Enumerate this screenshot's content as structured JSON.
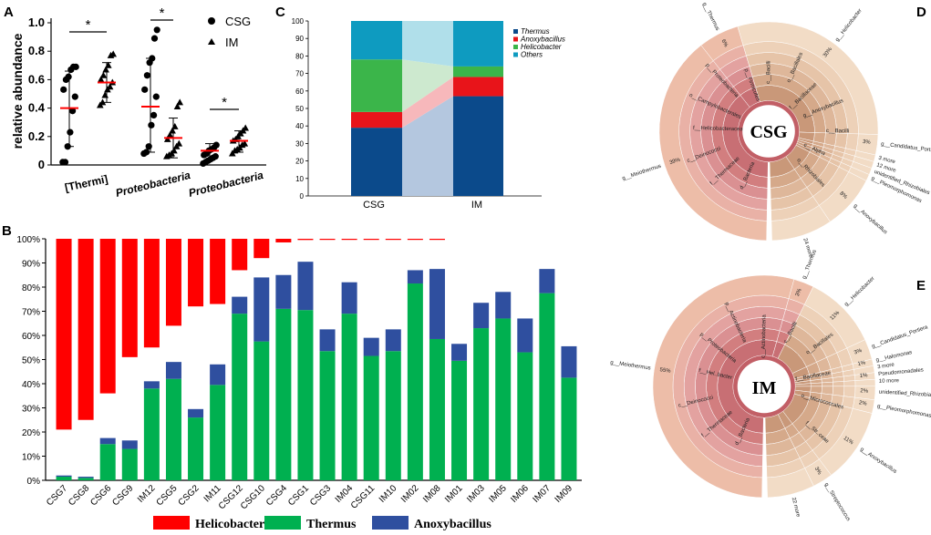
{
  "chart_data": [
    {
      "id": "A",
      "panel_label": "A",
      "type": "scatter",
      "ylabel": "relative abundance",
      "ylim": [
        0,
        1.0
      ],
      "yticks": [
        "0",
        "0.2",
        "0.4",
        "0.6",
        "0.8",
        "1.0"
      ],
      "categories": [
        "[Thermi]",
        "Proteobacteria",
        "Proteobacteria"
      ],
      "legend": [
        {
          "name": "CSG",
          "marker": "circle"
        },
        {
          "name": "IM",
          "marker": "triangle"
        }
      ],
      "significance": [
        "*",
        "*",
        "*"
      ],
      "groups": [
        {
          "csg": {
            "mean": 0.4,
            "sd_low": 0.13,
            "sd_high": 0.66,
            "points": [
              0.02,
              0.02,
              0.13,
              0.23,
              0.38,
              0.48,
              0.53,
              0.6,
              0.62,
              0.67,
              0.69,
              0.69
            ]
          },
          "im": {
            "mean": 0.58,
            "sd_low": 0.44,
            "sd_high": 0.72,
            "points": [
              0.42,
              0.44,
              0.49,
              0.53,
              0.55,
              0.58,
              0.6,
              0.63,
              0.67,
              0.7,
              0.77,
              0.78
            ]
          }
        },
        {
          "csg": {
            "mean": 0.41,
            "sd_low": 0.09,
            "sd_high": 0.75,
            "points": [
              0.08,
              0.09,
              0.13,
              0.28,
              0.35,
              0.48,
              0.53,
              0.63,
              0.72,
              0.75,
              0.89,
              0.95
            ]
          },
          "im": {
            "mean": 0.19,
            "sd_low": 0.05,
            "sd_high": 0.33,
            "points": [
              0.06,
              0.07,
              0.08,
              0.1,
              0.13,
              0.15,
              0.18,
              0.21,
              0.24,
              0.27,
              0.41,
              0.44
            ]
          }
        },
        {
          "csg": {
            "mean": 0.1,
            "sd_low": 0.04,
            "sd_high": 0.15,
            "points": [
              0.01,
              0.02,
              0.03,
              0.04,
              0.05,
              0.06,
              0.07,
              0.08,
              0.1,
              0.11,
              0.12,
              0.14
            ]
          },
          "im": {
            "mean": 0.17,
            "sd_low": 0.09,
            "sd_high": 0.24,
            "points": [
              0.08,
              0.1,
              0.11,
              0.12,
              0.14,
              0.15,
              0.17,
              0.18,
              0.2,
              0.22,
              0.24,
              0.26
            ]
          }
        }
      ]
    },
    {
      "id": "B",
      "panel_label": "B",
      "type": "bar",
      "ylim": [
        0,
        100
      ],
      "yticks": [
        "0%",
        "10%",
        "20%",
        "30%",
        "40%",
        "50%",
        "60%",
        "70%",
        "80%",
        "90%",
        "100%"
      ],
      "categories": [
        "CSG7",
        "CSG8",
        "CSG6",
        "CSG9",
        "IM12",
        "CSG5",
        "CSG2",
        "IM11",
        "CSG12",
        "CSG10",
        "CSG4",
        "CSG1",
        "CSG3",
        "IM04",
        "CSG11",
        "IM10",
        "IM02",
        "IM08",
        "IM01",
        "IM03",
        "IM05",
        "IM06",
        "IM07",
        "IM09"
      ],
      "series": [
        {
          "name": "Helicobacter",
          "color": "#FF0000",
          "values": [
            79,
            75,
            64,
            49,
            45,
            36,
            28,
            27,
            13,
            8,
            1.5,
            0.5,
            0.3,
            0.3,
            0.3,
            0.3,
            0.3,
            0.3,
            0,
            0,
            0,
            0,
            0,
            0
          ]
        },
        {
          "name": "Thermus",
          "color": "#00B050",
          "values": [
            1.5,
            1,
            15,
            13,
            38,
            42,
            26,
            39.5,
            69,
            57.5,
            71,
            70.5,
            53.5,
            69,
            51.5,
            53.5,
            81.5,
            58.5,
            49.5,
            63,
            67,
            53,
            77.5,
            42.5
          ]
        },
        {
          "name": "Anoxybacillus",
          "color": "#2F4F9F",
          "values": [
            0.5,
            0.5,
            2.5,
            3.5,
            3,
            7,
            3.5,
            8.5,
            7,
            26.5,
            14,
            20,
            9,
            13,
            7.5,
            9,
            5.5,
            29,
            7,
            10.5,
            11,
            14,
            10,
            13
          ]
        }
      ],
      "legend_placement": "bottom"
    },
    {
      "id": "C",
      "panel_label": "C",
      "type": "bar",
      "stacked": true,
      "ylim": [
        0,
        100
      ],
      "yticks": [
        "0",
        "10",
        "20",
        "30",
        "40",
        "50",
        "60",
        "70",
        "80",
        "90",
        "100"
      ],
      "categories": [
        "CSG",
        "IM"
      ],
      "series": [
        {
          "name": "Thermus",
          "color": "#0B4A8B",
          "values": [
            39,
            57
          ]
        },
        {
          "name": "Anoxybacillus",
          "color": "#E8141A",
          "values": [
            9,
            11
          ]
        },
        {
          "name": "Helicobacter",
          "color": "#3BB54A",
          "values": [
            30,
            6
          ]
        },
        {
          "name": "Others",
          "color": "#0E9BC0",
          "values": [
            22,
            26
          ]
        }
      ],
      "legend_placement": "top-right"
    },
    {
      "id": "D",
      "panel_label": "D",
      "type": "pie",
      "center_label": "CSG",
      "rings": [
        "root",
        "domain",
        "phylum",
        "class",
        "order",
        "family",
        "genus"
      ],
      "slices": [
        {
          "label": "g__Meiothermus",
          "pct_text": "39%",
          "value": 39
        },
        {
          "label": "g__Thermus",
          "pct_text": "6%",
          "value": 6
        },
        {
          "label": "g__Helicobacter",
          "pct_text": "30%",
          "value": 30
        },
        {
          "label": "g__Candidatus_Portiera",
          "pct_text": "3%",
          "value": 3
        },
        {
          "label": "3 more",
          "pct_text": "",
          "value": 1
        },
        {
          "label": "12 more",
          "pct_text": "",
          "value": 1
        },
        {
          "label": "unidentified_Rhizobiales",
          "pct_text": "",
          "value": 1
        },
        {
          "label": "g__Pleomorphomonas",
          "pct_text": "",
          "value": 1
        },
        {
          "label": "g__Anoxybacillus",
          "pct_text": "8%",
          "value": 8
        },
        {
          "label": "24 more",
          "pct_text": "",
          "value": 9
        }
      ],
      "inner_labels": [
        "d__Bacteria",
        "f__Thermaceae",
        "c__Deinococci",
        "f__Helicobacteraceae",
        "o__Campylobacterales",
        "p__Proteobacteria",
        "p__Firmicutes",
        "c__Bacilli",
        "o__Bacillales",
        "f__Bacillaceae",
        "g__Anoxybacillus",
        "c__Bacilli",
        "c__Alpha",
        "o__Rhizobiales"
      ]
    },
    {
      "id": "E",
      "panel_label": "E",
      "type": "pie",
      "center_label": "IM",
      "rings": [
        "root",
        "domain",
        "phylum",
        "class",
        "order",
        "family",
        "genus"
      ],
      "slices": [
        {
          "label": "g__Meiothermus",
          "pct_text": "55%",
          "value": 55
        },
        {
          "label": "g__Thermus",
          "pct_text": "3%",
          "value": 3
        },
        {
          "label": "g__Helicobacter",
          "pct_text": "11%",
          "value": 11
        },
        {
          "label": "g__Candidatus_Portiera",
          "pct_text": "3%",
          "value": 3
        },
        {
          "label": "g__Halomonas",
          "pct_text": "1%",
          "value": 1
        },
        {
          "label": "3 more",
          "pct_text": "",
          "value": 1
        },
        {
          "label": "Pseudomonadales",
          "pct_text": "1%",
          "value": 1
        },
        {
          "label": "10 more",
          "pct_text": "",
          "value": 1
        },
        {
          "label": "unidentified_Rhizobiales",
          "pct_text": "2%",
          "value": 2
        },
        {
          "label": "g__Pleomorphomonas",
          "pct_text": "2%",
          "value": 2
        },
        {
          "label": "g__Anoxybacillus",
          "pct_text": "11%",
          "value": 11
        },
        {
          "label": "g__Streptococcus",
          "pct_text": "3%",
          "value": 3
        },
        {
          "label": "22 more",
          "pct_text": "",
          "value": 7
        }
      ],
      "inner_labels": [
        "d__Bacteria",
        "f__Thermaceae",
        "c__Deinococci",
        "f__Hel..bacter",
        "p__Proteobacteria",
        "p__Actinobacteria",
        "c__Actinobacteria",
        "c__Bacilli",
        "o__Bacillales",
        "f__Bacillaceae",
        "o__Micrococcales",
        "f__Str..ceae"
      ]
    }
  ]
}
